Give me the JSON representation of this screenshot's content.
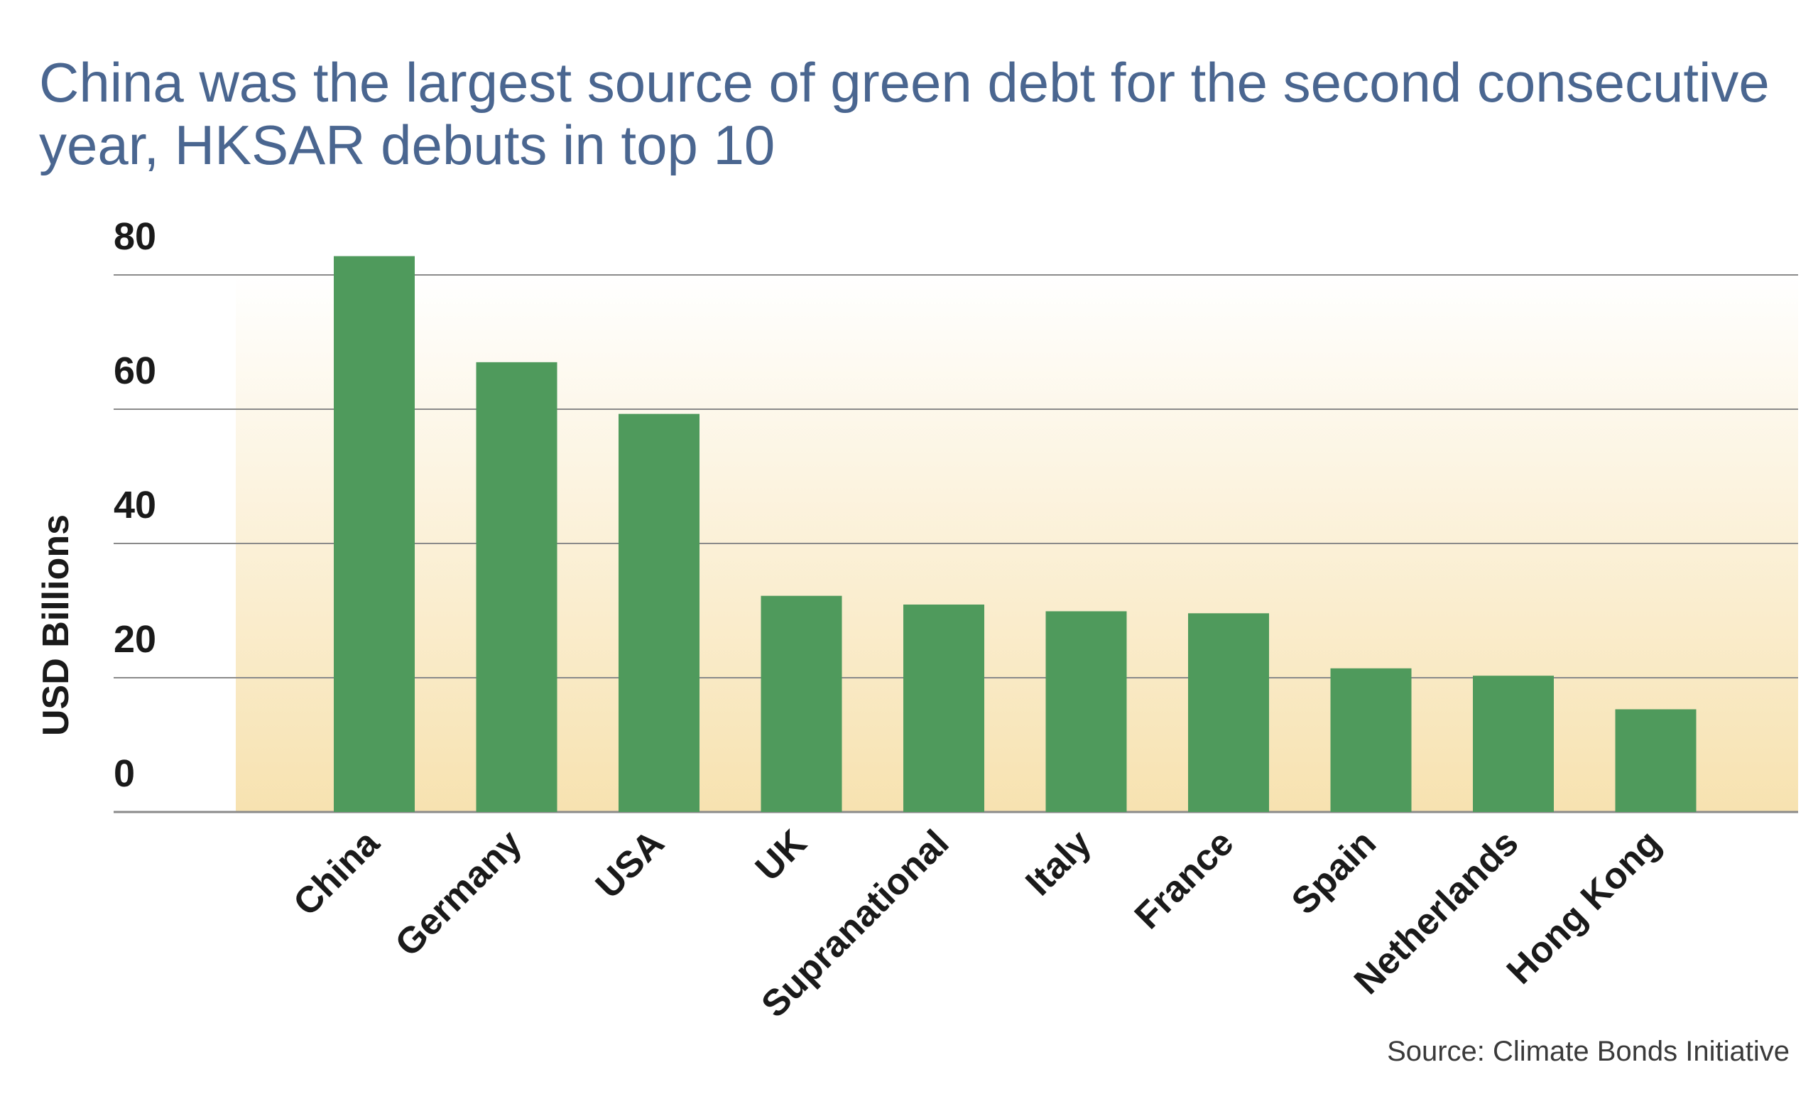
{
  "title": "China was the largest source of green debt for the second consecutive year, HKSAR debuts in top 10",
  "source": "Source: Climate Bonds Initiative",
  "colors": {
    "bar": "#4f9a5c",
    "gridline": "#8a8a8a",
    "background_top": "#ffffff",
    "background_bottom": "#f7e2b0",
    "title": "#4a6690"
  },
  "chart_data": {
    "type": "bar",
    "ylabel": "USD Billions",
    "xlabel": "",
    "ylim": [
      0,
      80
    ],
    "yticks": [
      0,
      20,
      40,
      60,
      80
    ],
    "grid": true,
    "categories": [
      "China",
      "Germany",
      "USA",
      "UK",
      "Supranational",
      "Italy",
      "France",
      "Spain",
      "Netherlands",
      "Hong Kong"
    ],
    "values": [
      82.8,
      67,
      59.3,
      32.2,
      30.9,
      29.9,
      29.6,
      21.4,
      20.3,
      15.3
    ]
  }
}
